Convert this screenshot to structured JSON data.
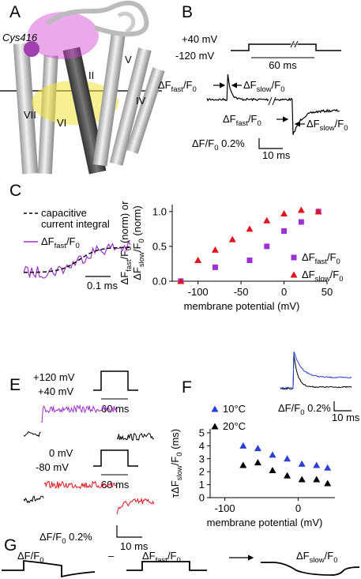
{
  "panels": {
    "A": {
      "letter": "A",
      "residue": "Cys416",
      "helices": [
        "VII",
        "V",
        "IV",
        "II",
        "VI"
      ]
    },
    "B": {
      "letter": "B",
      "v_high": "+40 mV",
      "v_low": "-120 mV",
      "step_duration": "60 ms",
      "on_fast": [
        "ΔF",
        {
          "sub": "fast"
        },
        "/F",
        {
          "sub": "0"
        }
      ],
      "on_slow": [
        "ΔF",
        {
          "sub": "slow"
        },
        "/F",
        {
          "sub": "0"
        }
      ],
      "off_fast": [
        "ΔF",
        {
          "sub": "fast"
        },
        "/F",
        {
          "sub": "0"
        }
      ],
      "off_slow": [
        "ΔF",
        {
          "sub": "slow"
        },
        "/F",
        {
          "sub": "0"
        }
      ],
      "scale_amplitude": [
        "ΔF/F",
        {
          "sub": "0"
        },
        " 0.2%"
      ],
      "scale_time": "10 ms"
    },
    "C": {
      "letter": "C",
      "legend_dashed": [
        "capacitive",
        "current integral"
      ],
      "legend_trace": [
        "ΔF",
        {
          "sub": "fast"
        },
        "/F",
        {
          "sub": "0"
        }
      ],
      "scale_time": "0.1 ms"
    },
    "E": {
      "letter": "E",
      "protocol_1": {
        "v_high": "+120 mV",
        "v_low": "+40 mV",
        "duration": "60 ms"
      },
      "protocol_2": {
        "v_high": "0 mV",
        "v_low": "-80 mV",
        "duration": "60 ms"
      },
      "scale_amplitude": [
        "ΔF/F",
        {
          "sub": "0"
        },
        " 0.2%"
      ],
      "scale_time": "10 ms"
    },
    "F": {
      "letter": "F",
      "inset_scale_amplitude": [
        "ΔF/F",
        {
          "sub": "0"
        },
        " 0.2%"
      ],
      "inset_scale_time": "10 ms"
    },
    "G": {
      "letter": "G",
      "term_total": [
        "ΔF/F",
        {
          "sub": "0"
        }
      ],
      "operator": "–",
      "term_fast": [
        "ΔF",
        {
          "sub": "fast"
        },
        "/F",
        {
          "sub": "0"
        }
      ],
      "term_slow": [
        "ΔF",
        {
          "sub": "slow"
        },
        "/F",
        {
          "sub": "0"
        }
      ]
    }
  },
  "chart_data": [
    {
      "type": "scatter",
      "panel": "D",
      "ylabel": [
        [
          "ΔF",
          {
            "sub": "fast"
          },
          "/F",
          {
            "sub": "0"
          },
          " (norm) or"
        ],
        [
          "ΔF",
          {
            "sub": "slow"
          },
          "/F",
          {
            "sub": "0"
          },
          " (norm)"
        ]
      ],
      "xlabel": "membrane potential (mV)",
      "xlim": [
        -130,
        50
      ],
      "xticks": [
        -100,
        -50,
        0,
        50
      ],
      "ylim": [
        0,
        1.1
      ],
      "yticks": [
        {
          "value": 0,
          "label": "0.0"
        },
        {
          "value": 0.5,
          "label": "0.5"
        },
        {
          "value": 1,
          "label": "1.0"
        }
      ],
      "legend": "lower right",
      "series": [
        {
          "name": [
            "ΔF",
            {
              "sub": "fast"
            },
            "/F",
            {
              "sub": "0"
            }
          ],
          "color": "#9b32d2",
          "marker": "square",
          "x": [
            -120,
            -80,
            -40,
            -20,
            0,
            20,
            40
          ],
          "values": [
            0,
            0.2,
            0.3,
            0.5,
            0.72,
            0.85,
            1.0
          ]
        },
        {
          "name": [
            "ΔF",
            {
              "sub": "slow"
            },
            "/F",
            {
              "sub": "0"
            }
          ],
          "color": "#e0141e",
          "marker": "triangle",
          "x": [
            -120,
            -100,
            -80,
            -60,
            -40,
            -20,
            0,
            20,
            40
          ],
          "values": [
            0,
            0.3,
            0.45,
            0.6,
            0.75,
            0.87,
            0.97,
            1.02,
            1.0
          ]
        }
      ]
    },
    {
      "type": "scatter",
      "panel": "F",
      "ylabel": [
        [
          "τΔF",
          {
            "sub": "slow"
          },
          "/F",
          {
            "sub": "0"
          },
          " (ms)"
        ]
      ],
      "xlabel": "membrane potential (mV)",
      "xlim": [
        -120,
        50
      ],
      "xticks": [
        -100,
        0
      ],
      "ylim": [
        0,
        5.3
      ],
      "yticks": [
        0,
        1,
        2,
        3,
        4,
        5
      ],
      "legend": "upper left",
      "series": [
        {
          "name": "10°C",
          "color": "#2a3fd6",
          "marker": "triangle",
          "x": [
            -75,
            -55,
            -35,
            -15,
            5,
            25,
            40
          ],
          "values": [
            4.0,
            3.8,
            3.3,
            3.0,
            2.6,
            2.5,
            2.3
          ]
        },
        {
          "name": "20°C",
          "color": "#000000",
          "marker": "triangle",
          "x": [
            -75,
            -55,
            -35,
            -15,
            5,
            25,
            40
          ],
          "values": [
            2.5,
            2.7,
            2.1,
            1.7,
            1.4,
            1.4,
            1.1
          ]
        }
      ]
    }
  ]
}
